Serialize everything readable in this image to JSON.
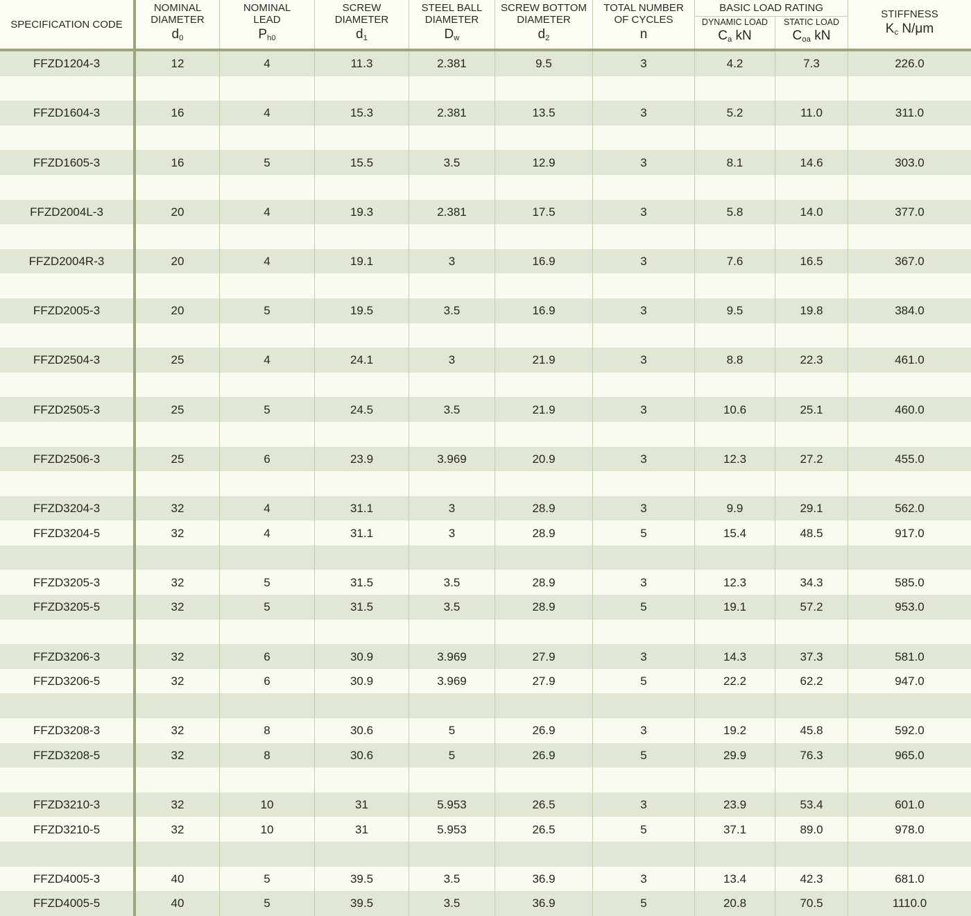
{
  "header": {
    "spec": {
      "label": "SPECIFICATION CODE"
    },
    "d0": {
      "line1": "NOMINAL",
      "line2": "DIAMETER",
      "sym": "d",
      "sub": "0",
      "unit": ""
    },
    "ph0": {
      "line1": "NOMINAL",
      "line2": "LEAD",
      "sym": "P",
      "sub": "h0",
      "unit": ""
    },
    "d1": {
      "line1": "SCREW",
      "line2": "DIAMETER",
      "sym": "d",
      "sub": "1",
      "unit": ""
    },
    "dw": {
      "line1": "STEEL BALL",
      "line2": "DIAMETER",
      "sym": "D",
      "sub": "w",
      "unit": ""
    },
    "d2": {
      "line1": "SCREW BOTTOM",
      "line2": "DIAMETER",
      "sym": "d",
      "sub": "2",
      "unit": ""
    },
    "n": {
      "line1": "TOTAL NUMBER",
      "line2": "OF CYCLES",
      "sym": "n",
      "sub": "",
      "unit": ""
    },
    "load_group": {
      "label": "BASIC LOAD RATING"
    },
    "ca": {
      "line1": "DYNAMIC LOAD",
      "sym": "C",
      "sub": "a",
      "unit": " kN"
    },
    "coa": {
      "line1": "STATIC LOAD",
      "sym": "C",
      "sub": "oa",
      "unit": " kN"
    },
    "kc": {
      "line1": "STIFFNESS",
      "sym": "K",
      "sub": "c",
      "unit": " N/μm"
    }
  },
  "colors": {
    "thick_divider": "#98a87a",
    "thin_divider": "#c2cfa7",
    "stripe_green": "#e0e8d5",
    "stripe_white": "#f9fbf0",
    "header_bg": "#fdfdf6",
    "text": "#26261f"
  },
  "rows": [
    {
      "spec": "FFZD1204-3",
      "d0": "12",
      "ph0": "4",
      "d1": "11.3",
      "dw": "2.381",
      "d2": "9.5",
      "n": "3",
      "ca": "4.2",
      "coa": "7.3",
      "kc": "226.0"
    },
    null,
    {
      "spec": "FFZD1604-3",
      "d0": "16",
      "ph0": "4",
      "d1": "15.3",
      "dw": "2.381",
      "d2": "13.5",
      "n": "3",
      "ca": "5.2",
      "coa": "11.0",
      "kc": "311.0"
    },
    null,
    {
      "spec": "FFZD1605-3",
      "d0": "16",
      "ph0": "5",
      "d1": "15.5",
      "dw": "3.5",
      "d2": "12.9",
      "n": "3",
      "ca": "8.1",
      "coa": "14.6",
      "kc": "303.0"
    },
    null,
    {
      "spec": "FFZD2004L-3",
      "d0": "20",
      "ph0": "4",
      "d1": "19.3",
      "dw": "2.381",
      "d2": "17.5",
      "n": "3",
      "ca": "5.8",
      "coa": "14.0",
      "kc": "377.0"
    },
    null,
    {
      "spec": "FFZD2004R-3",
      "d0": "20",
      "ph0": "4",
      "d1": "19.1",
      "dw": "3",
      "d2": "16.9",
      "n": "3",
      "ca": "7.6",
      "coa": "16.5",
      "kc": "367.0"
    },
    null,
    {
      "spec": "FFZD2005-3",
      "d0": "20",
      "ph0": "5",
      "d1": "19.5",
      "dw": "3.5",
      "d2": "16.9",
      "n": "3",
      "ca": "9.5",
      "coa": "19.8",
      "kc": "384.0"
    },
    null,
    {
      "spec": "FFZD2504-3",
      "d0": "25",
      "ph0": "4",
      "d1": "24.1",
      "dw": "3",
      "d2": "21.9",
      "n": "3",
      "ca": "8.8",
      "coa": "22.3",
      "kc": "461.0"
    },
    null,
    {
      "spec": "FFZD2505-3",
      "d0": "25",
      "ph0": "5",
      "d1": "24.5",
      "dw": "3.5",
      "d2": "21.9",
      "n": "3",
      "ca": "10.6",
      "coa": "25.1",
      "kc": "460.0"
    },
    null,
    {
      "spec": "FFZD2506-3",
      "d0": "25",
      "ph0": "6",
      "d1": "23.9",
      "dw": "3.969",
      "d2": "20.9",
      "n": "3",
      "ca": "12.3",
      "coa": "27.2",
      "kc": "455.0"
    },
    null,
    {
      "spec": "FFZD3204-3",
      "d0": "32",
      "ph0": "4",
      "d1": "31.1",
      "dw": "3",
      "d2": "28.9",
      "n": "3",
      "ca": "9.9",
      "coa": "29.1",
      "kc": "562.0"
    },
    {
      "spec": "FFZD3204-5",
      "d0": "32",
      "ph0": "4",
      "d1": "31.1",
      "dw": "3",
      "d2": "28.9",
      "n": "5",
      "ca": "15.4",
      "coa": "48.5",
      "kc": "917.0"
    },
    null,
    {
      "spec": "FFZD3205-3",
      "d0": "32",
      "ph0": "5",
      "d1": "31.5",
      "dw": "3.5",
      "d2": "28.9",
      "n": "3",
      "ca": "12.3",
      "coa": "34.3",
      "kc": "585.0"
    },
    {
      "spec": "FFZD3205-5",
      "d0": "32",
      "ph0": "5",
      "d1": "31.5",
      "dw": "3.5",
      "d2": "28.9",
      "n": "5",
      "ca": "19.1",
      "coa": "57.2",
      "kc": "953.0"
    },
    null,
    {
      "spec": "FFZD3206-3",
      "d0": "32",
      "ph0": "6",
      "d1": "30.9",
      "dw": "3.969",
      "d2": "27.9",
      "n": "3",
      "ca": "14.3",
      "coa": "37.3",
      "kc": "581.0"
    },
    {
      "spec": "FFZD3206-5",
      "d0": "32",
      "ph0": "6",
      "d1": "30.9",
      "dw": "3.969",
      "d2": "27.9",
      "n": "5",
      "ca": "22.2",
      "coa": "62.2",
      "kc": "947.0"
    },
    null,
    {
      "spec": "FFZD3208-3",
      "d0": "32",
      "ph0": "8",
      "d1": "30.6",
      "dw": "5",
      "d2": "26.9",
      "n": "3",
      "ca": "19.2",
      "coa": "45.8",
      "kc": "592.0"
    },
    {
      "spec": "FFZD3208-5",
      "d0": "32",
      "ph0": "8",
      "d1": "30.6",
      "dw": "5",
      "d2": "26.9",
      "n": "5",
      "ca": "29.9",
      "coa": "76.3",
      "kc": "965.0"
    },
    null,
    {
      "spec": "FFZD3210-3",
      "d0": "32",
      "ph0": "10",
      "d1": "31",
      "dw": "5.953",
      "d2": "26.5",
      "n": "3",
      "ca": "23.9",
      "coa": "53.4",
      "kc": "601.0"
    },
    {
      "spec": "FFZD3210-5",
      "d0": "32",
      "ph0": "10",
      "d1": "31",
      "dw": "5.953",
      "d2": "26.5",
      "n": "5",
      "ca": "37.1",
      "coa": "89.0",
      "kc": "978.0"
    },
    null,
    {
      "spec": "FFZD4005-3",
      "d0": "40",
      "ph0": "5",
      "d1": "39.5",
      "dw": "3.5",
      "d2": "36.9",
      "n": "3",
      "ca": "13.4",
      "coa": "42.3",
      "kc": "681.0"
    },
    {
      "spec": "FFZD4005-5",
      "d0": "40",
      "ph0": "5",
      "d1": "39.5",
      "dw": "3.5",
      "d2": "36.9",
      "n": "5",
      "ca": "20.8",
      "coa": "70.5",
      "kc": "1110.0"
    }
  ]
}
